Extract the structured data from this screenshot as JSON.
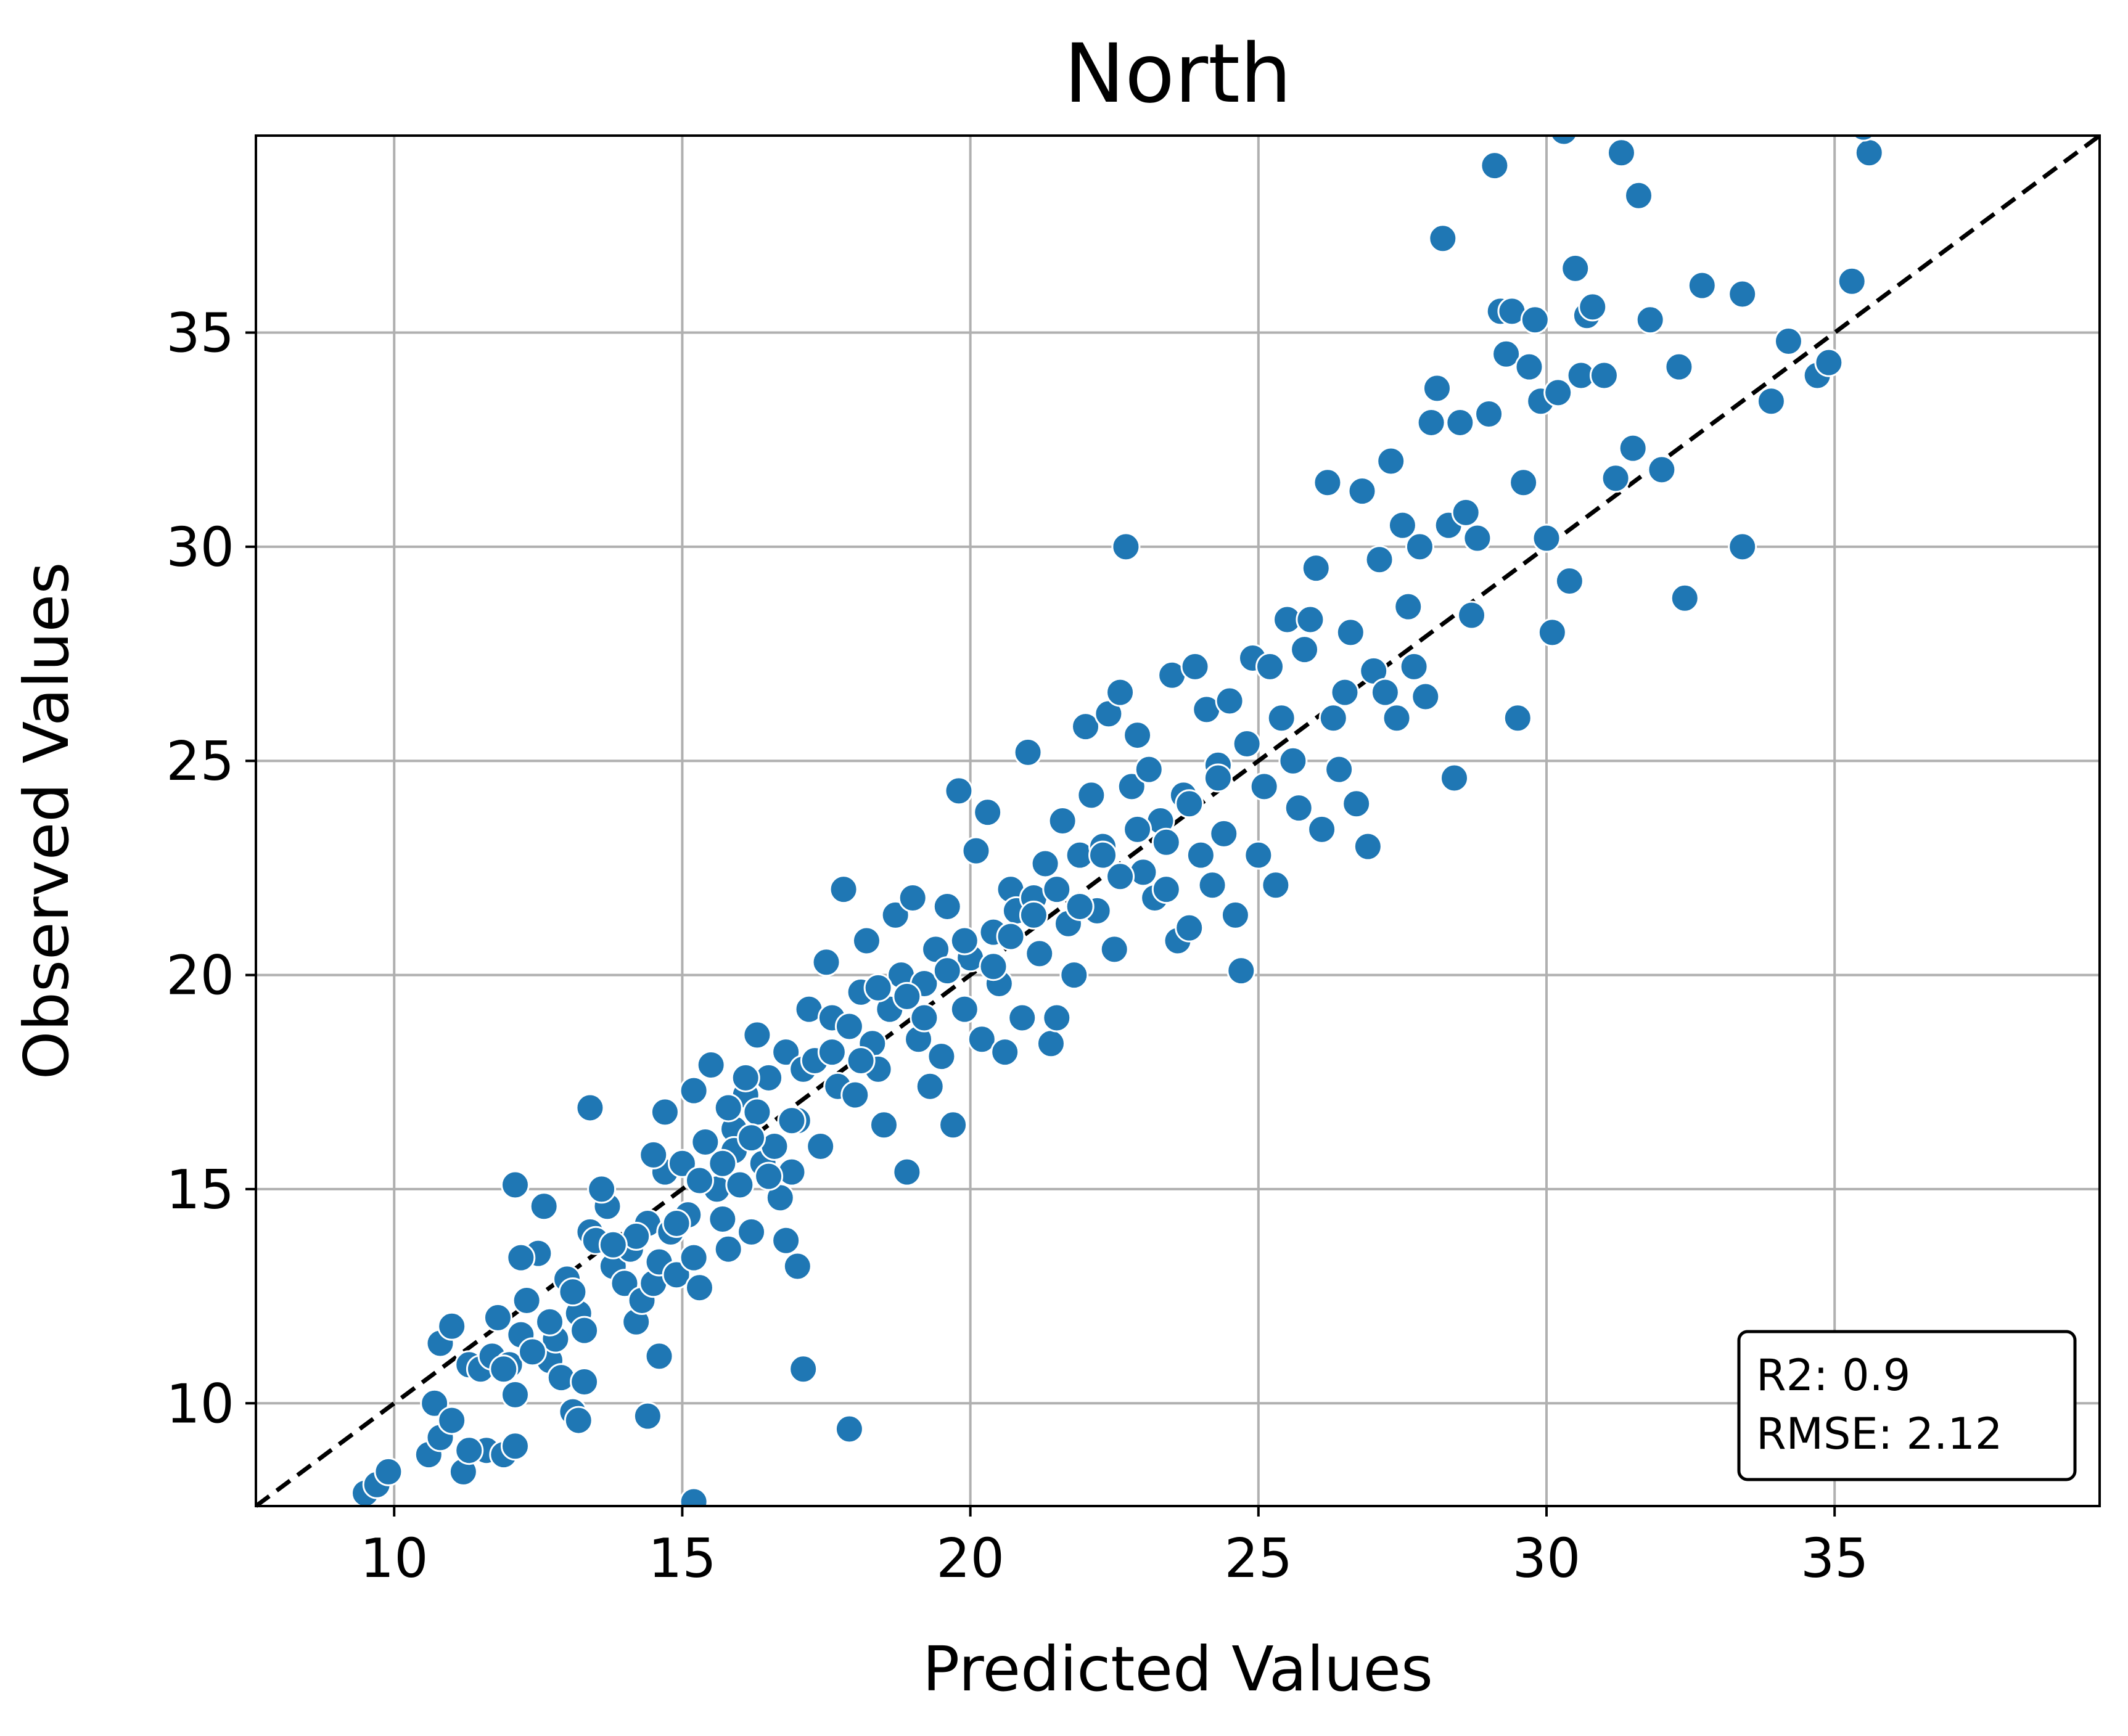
{
  "chart_data": {
    "type": "scatter",
    "title": "North",
    "xlabel": "Predicted Values",
    "ylabel": "Observed Values",
    "xlim": [
      7.6,
      39.6
    ],
    "ylim": [
      7.6,
      39.6
    ],
    "xticks": [
      10,
      15,
      20,
      25,
      30,
      35
    ],
    "yticks": [
      10,
      15,
      20,
      25,
      30,
      35
    ],
    "grid": true,
    "point_color": "#1f77b4",
    "reference_line": {
      "type": "identity",
      "style": "dashed",
      "color": "#000000"
    },
    "stats": {
      "r2_text": "R2: 0.9",
      "rmse_text": "RMSE: 2.12",
      "placement": "bottom-right"
    },
    "points": [
      [
        9.5,
        7.9
      ],
      [
        9.7,
        8.1
      ],
      [
        9.9,
        8.4
      ],
      [
        10.6,
        8.8
      ],
      [
        10.8,
        9.2
      ],
      [
        11.2,
        8.4
      ],
      [
        11.6,
        8.9
      ],
      [
        11.9,
        8.8
      ],
      [
        12.1,
        9.0
      ],
      [
        10.7,
        10.0
      ],
      [
        11.0,
        9.6
      ],
      [
        11.3,
        8.9
      ],
      [
        10.8,
        11.4
      ],
      [
        11.0,
        11.8
      ],
      [
        11.3,
        10.9
      ],
      [
        11.5,
        10.8
      ],
      [
        11.7,
        11.1
      ],
      [
        11.8,
        12.0
      ],
      [
        12.0,
        10.9
      ],
      [
        12.1,
        10.2
      ],
      [
        12.2,
        11.6
      ],
      [
        12.3,
        12.4
      ],
      [
        12.5,
        13.5
      ],
      [
        12.6,
        14.6
      ],
      [
        12.1,
        15.1
      ],
      [
        12.2,
        13.4
      ],
      [
        12.7,
        11.0
      ],
      [
        12.8,
        11.5
      ],
      [
        12.9,
        10.6
      ],
      [
        13.0,
        12.9
      ],
      [
        13.1,
        9.8
      ],
      [
        13.2,
        9.6
      ],
      [
        13.3,
        10.5
      ],
      [
        13.2,
        12.1
      ],
      [
        13.3,
        11.7
      ],
      [
        13.4,
        14.0
      ],
      [
        13.5,
        13.8
      ],
      [
        13.7,
        14.6
      ],
      [
        13.6,
        15.0
      ],
      [
        13.8,
        13.2
      ],
      [
        14.0,
        12.8
      ],
      [
        14.1,
        13.6
      ],
      [
        14.2,
        11.9
      ],
      [
        14.3,
        12.4
      ],
      [
        14.4,
        14.2
      ],
      [
        14.5,
        12.8
      ],
      [
        14.6,
        13.3
      ],
      [
        14.7,
        15.4
      ],
      [
        14.8,
        14.0
      ],
      [
        14.9,
        13.0
      ],
      [
        14.5,
        15.8
      ],
      [
        14.7,
        16.8
      ],
      [
        14.6,
        11.1
      ],
      [
        14.4,
        9.7
      ],
      [
        13.4,
        16.9
      ],
      [
        15.0,
        15.6
      ],
      [
        15.1,
        14.4
      ],
      [
        15.2,
        13.4
      ],
      [
        15.3,
        12.7
      ],
      [
        15.2,
        17.3
      ],
      [
        15.4,
        16.1
      ],
      [
        15.5,
        17.9
      ],
      [
        15.6,
        15.0
      ],
      [
        15.7,
        14.3
      ],
      [
        15.8,
        13.6
      ],
      [
        15.9,
        16.4
      ],
      [
        16.0,
        15.1
      ],
      [
        16.1,
        17.2
      ],
      [
        16.2,
        14.0
      ],
      [
        16.3,
        16.8
      ],
      [
        16.4,
        15.6
      ],
      [
        16.5,
        17.6
      ],
      [
        16.6,
        16.0
      ],
      [
        16.7,
        14.8
      ],
      [
        16.8,
        18.2
      ],
      [
        16.9,
        15.4
      ],
      [
        17.0,
        16.6
      ],
      [
        17.1,
        17.8
      ],
      [
        17.0,
        13.2
      ],
      [
        17.1,
        10.8
      ],
      [
        16.8,
        13.8
      ],
      [
        17.2,
        19.2
      ],
      [
        17.3,
        18.0
      ],
      [
        17.4,
        16.0
      ],
      [
        17.5,
        20.3
      ],
      [
        17.6,
        19.0
      ],
      [
        17.7,
        17.4
      ],
      [
        17.8,
        22.0
      ],
      [
        17.9,
        18.8
      ],
      [
        18.0,
        17.2
      ],
      [
        18.1,
        19.6
      ],
      [
        18.2,
        20.8
      ],
      [
        18.3,
        18.4
      ],
      [
        18.4,
        17.8
      ],
      [
        18.5,
        16.5
      ],
      [
        18.6,
        19.2
      ],
      [
        18.7,
        21.4
      ],
      [
        18.8,
        20.0
      ],
      [
        18.9,
        15.4
      ],
      [
        19.0,
        21.8
      ],
      [
        19.1,
        18.5
      ],
      [
        19.2,
        19.8
      ],
      [
        19.3,
        17.4
      ],
      [
        19.4,
        20.6
      ],
      [
        19.5,
        18.1
      ],
      [
        19.6,
        21.6
      ],
      [
        19.7,
        16.5
      ],
      [
        19.8,
        24.3
      ],
      [
        19.9,
        19.2
      ],
      [
        20.0,
        20.4
      ],
      [
        20.1,
        22.9
      ],
      [
        20.2,
        18.5
      ],
      [
        20.3,
        23.8
      ],
      [
        20.4,
        21.0
      ],
      [
        20.5,
        19.8
      ],
      [
        20.6,
        18.2
      ],
      [
        20.7,
        22.0
      ],
      [
        20.8,
        21.5
      ],
      [
        20.9,
        19.0
      ],
      [
        21.0,
        25.2
      ],
      [
        21.1,
        21.8
      ],
      [
        21.2,
        20.5
      ],
      [
        21.3,
        22.6
      ],
      [
        21.4,
        18.4
      ],
      [
        21.5,
        19.0
      ],
      [
        21.6,
        23.6
      ],
      [
        21.7,
        21.2
      ],
      [
        21.8,
        20.0
      ],
      [
        21.9,
        22.8
      ],
      [
        22.0,
        25.8
      ],
      [
        22.1,
        24.2
      ],
      [
        22.2,
        21.5
      ],
      [
        22.3,
        23.0
      ],
      [
        22.4,
        26.1
      ],
      [
        22.5,
        20.6
      ],
      [
        22.6,
        26.6
      ],
      [
        22.7,
        30.0
      ],
      [
        22.8,
        24.4
      ],
      [
        22.9,
        25.6
      ],
      [
        23.0,
        22.4
      ],
      [
        23.1,
        24.8
      ],
      [
        23.2,
        21.8
      ],
      [
        23.3,
        23.6
      ],
      [
        23.4,
        22.0
      ],
      [
        23.5,
        27.0
      ],
      [
        23.6,
        20.8
      ],
      [
        23.7,
        24.2
      ],
      [
        23.8,
        21.1
      ],
      [
        23.9,
        27.2
      ],
      [
        24.0,
        22.8
      ],
      [
        24.1,
        26.2
      ],
      [
        24.2,
        22.1
      ],
      [
        24.3,
        24.9
      ],
      [
        24.4,
        23.3
      ],
      [
        24.5,
        26.4
      ],
      [
        24.6,
        21.4
      ],
      [
        24.7,
        20.1
      ],
      [
        24.8,
        25.4
      ],
      [
        24.9,
        27.4
      ],
      [
        25.0,
        22.8
      ],
      [
        25.1,
        24.4
      ],
      [
        25.2,
        27.2
      ],
      [
        25.3,
        22.1
      ],
      [
        25.4,
        26.0
      ],
      [
        25.5,
        28.3
      ],
      [
        25.6,
        25.0
      ],
      [
        25.7,
        23.9
      ],
      [
        25.8,
        27.6
      ],
      [
        25.9,
        28.3
      ],
      [
        26.0,
        29.5
      ],
      [
        26.1,
        23.4
      ],
      [
        26.2,
        31.5
      ],
      [
        26.3,
        26.0
      ],
      [
        26.4,
        24.8
      ],
      [
        26.5,
        26.6
      ],
      [
        26.6,
        28.0
      ],
      [
        26.7,
        24.0
      ],
      [
        26.8,
        31.3
      ],
      [
        26.9,
        23.0
      ],
      [
        27.0,
        27.1
      ],
      [
        27.1,
        29.7
      ],
      [
        27.2,
        26.6
      ],
      [
        27.3,
        32.0
      ],
      [
        27.4,
        26.0
      ],
      [
        27.5,
        30.5
      ],
      [
        27.6,
        28.6
      ],
      [
        27.7,
        27.2
      ],
      [
        27.8,
        30.0
      ],
      [
        27.9,
        26.5
      ],
      [
        28.0,
        32.9
      ],
      [
        28.1,
        33.7
      ],
      [
        28.2,
        37.2
      ],
      [
        28.3,
        30.5
      ],
      [
        28.4,
        24.6
      ],
      [
        28.5,
        32.9
      ],
      [
        28.6,
        30.8
      ],
      [
        28.7,
        28.4
      ],
      [
        28.8,
        30.2
      ],
      [
        29.0,
        33.1
      ],
      [
        29.1,
        38.9
      ],
      [
        29.2,
        35.5
      ],
      [
        29.3,
        34.5
      ],
      [
        29.4,
        35.5
      ],
      [
        29.5,
        26.0
      ],
      [
        29.6,
        31.5
      ],
      [
        29.7,
        34.2
      ],
      [
        29.8,
        35.3
      ],
      [
        29.9,
        33.4
      ],
      [
        30.0,
        30.2
      ],
      [
        30.1,
        28.0
      ],
      [
        30.2,
        33.6
      ],
      [
        30.3,
        39.7
      ],
      [
        30.4,
        29.2
      ],
      [
        30.5,
        36.5
      ],
      [
        30.6,
        34.0
      ],
      [
        30.7,
        35.4
      ],
      [
        30.8,
        35.6
      ],
      [
        31.0,
        34.0
      ],
      [
        31.2,
        31.6
      ],
      [
        31.3,
        39.2
      ],
      [
        31.5,
        32.3
      ],
      [
        31.6,
        38.2
      ],
      [
        31.8,
        35.3
      ],
      [
        32.0,
        31.8
      ],
      [
        32.3,
        34.2
      ],
      [
        32.4,
        28.8
      ],
      [
        32.7,
        36.1
      ],
      [
        33.4,
        30.0
      ],
      [
        33.4,
        35.9
      ],
      [
        33.9,
        33.4
      ],
      [
        34.2,
        34.8
      ],
      [
        34.7,
        34.0
      ],
      [
        34.9,
        34.3
      ],
      [
        35.3,
        36.2
      ],
      [
        35.6,
        39.2
      ],
      [
        35.5,
        39.8
      ],
      [
        15.2,
        7.7
      ],
      [
        17.9,
        9.4
      ],
      [
        16.3,
        18.6
      ],
      [
        16.1,
        17.6
      ],
      [
        15.8,
        16.9
      ],
      [
        15.9,
        15.9
      ],
      [
        16.2,
        16.2
      ],
      [
        16.5,
        15.3
      ],
      [
        16.9,
        16.6
      ],
      [
        17.6,
        18.2
      ],
      [
        18.1,
        18.0
      ],
      [
        18.4,
        19.7
      ],
      [
        18.9,
        19.5
      ],
      [
        19.2,
        19.0
      ],
      [
        19.6,
        20.1
      ],
      [
        19.9,
        20.8
      ],
      [
        20.4,
        20.2
      ],
      [
        20.7,
        20.9
      ],
      [
        21.1,
        21.4
      ],
      [
        21.5,
        22.0
      ],
      [
        21.9,
        21.6
      ],
      [
        22.3,
        22.8
      ],
      [
        22.6,
        22.3
      ],
      [
        22.9,
        23.4
      ],
      [
        23.4,
        23.1
      ],
      [
        23.8,
        24.0
      ],
      [
        24.3,
        24.6
      ],
      [
        14.9,
        14.2
      ],
      [
        15.3,
        15.2
      ],
      [
        15.7,
        15.6
      ],
      [
        14.2,
        13.9
      ],
      [
        13.8,
        13.7
      ],
      [
        13.1,
        12.6
      ],
      [
        12.7,
        11.9
      ],
      [
        12.4,
        11.2
      ],
      [
        11.9,
        10.8
      ]
    ]
  }
}
